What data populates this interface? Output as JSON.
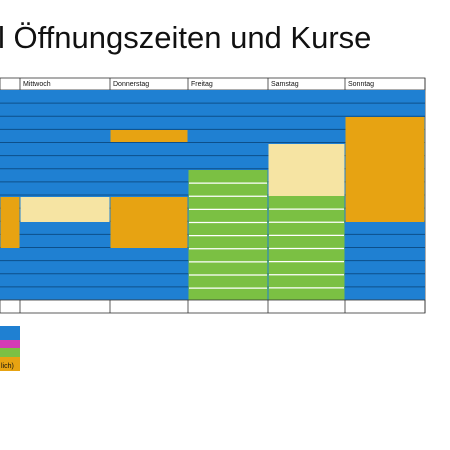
{
  "header": {
    "title": "l Öffnungszeiten und Kurse"
  },
  "table": {
    "columns": [
      "Mittwoch",
      "Donnerstag",
      "Freitag",
      "Samstag",
      "Sonntag"
    ]
  },
  "legend": {
    "items": [
      "lich)"
    ]
  }
}
